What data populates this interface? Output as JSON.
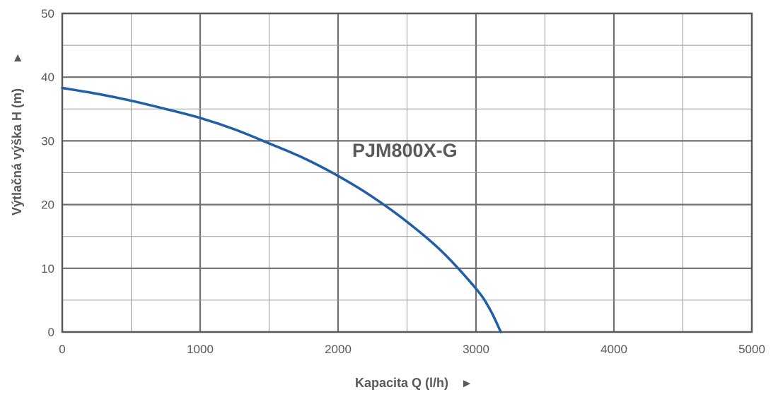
{
  "chart_data": {
    "type": "line",
    "xlabel": "Kapacita Q (l/h)",
    "ylabel": "Výtlačná výška H (m)",
    "xlim": [
      0,
      5000
    ],
    "ylim": [
      0,
      50
    ],
    "x_ticks": [
      0,
      1000,
      2000,
      3000,
      4000,
      5000
    ],
    "y_ticks": [
      0,
      10,
      20,
      30,
      40,
      50
    ],
    "grid": true,
    "axis_arrow": "►",
    "series": [
      {
        "color": "#1f5fa8",
        "x": [
          0,
          250,
          500,
          750,
          1000,
          1250,
          1500,
          1750,
          2000,
          2250,
          2500,
          2750,
          3000,
          3100,
          3180
        ],
        "y": [
          38.3,
          37.4,
          36.3,
          35.0,
          33.6,
          31.8,
          29.6,
          27.3,
          24.5,
          21.2,
          17.3,
          12.7,
          6.8,
          3.6,
          0
        ]
      }
    ],
    "annotations": [
      {
        "text": "PJM800X-G",
        "x": 2000,
        "y": 27.5
      }
    ],
    "colors": {
      "grid_major": "#6e6e6e",
      "grid_minor": "#9a9a9a",
      "frame": "#595959",
      "text": "#595959"
    }
  }
}
